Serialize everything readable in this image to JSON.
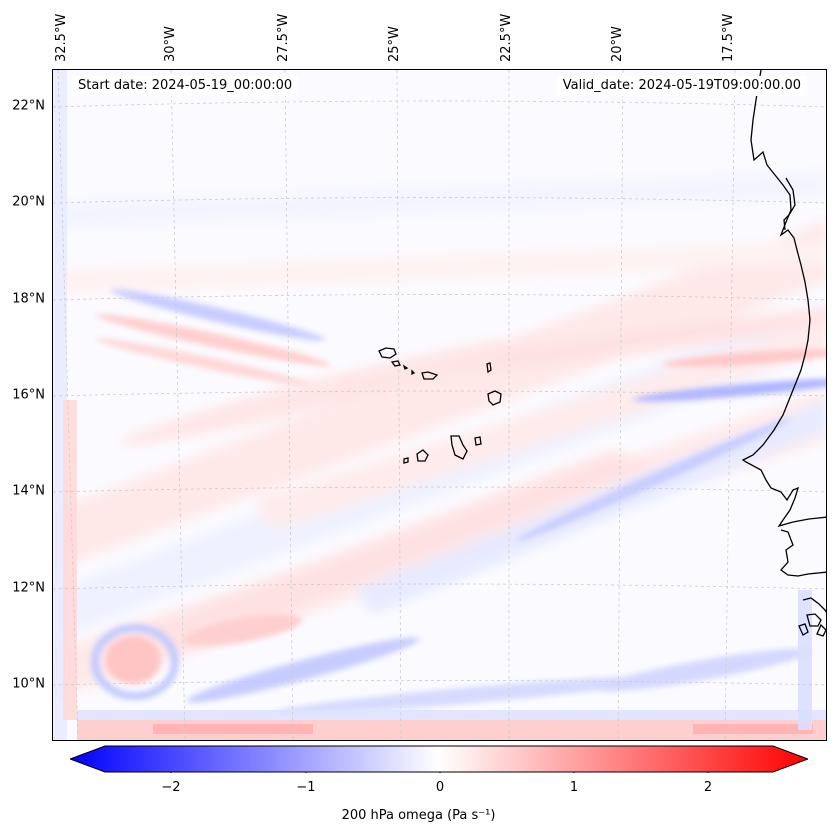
{
  "map": {
    "start_date": "Start date: 2024-05-19_00:00:00",
    "valid_date": "Valid_date: 2024-05-19T09:00:00.00",
    "lon_labels": [
      "32.5°W",
      "30°W",
      "27.5°W",
      "25°W",
      "22.5°W",
      "20°W",
      "17.5°W"
    ],
    "lat_labels": [
      "22°N",
      "20°N",
      "18°N",
      "16°N",
      "14°N",
      "12°N",
      "10°N"
    ],
    "features": [
      "Cape Verde islands",
      "West African coastline"
    ],
    "colors": {
      "positive": "#ff0000",
      "negative": "#0000ff",
      "neutral": "#ffffff",
      "coast": "#000000",
      "grid": "#bbbbbb"
    }
  },
  "colorbar": {
    "label": "200 hPa omega (Pa s⁻¹)",
    "ticks": [
      "−2",
      "−1",
      "0",
      "1",
      "2"
    ],
    "range": [
      -2.6,
      2.6
    ],
    "cmap": "bwr"
  }
}
